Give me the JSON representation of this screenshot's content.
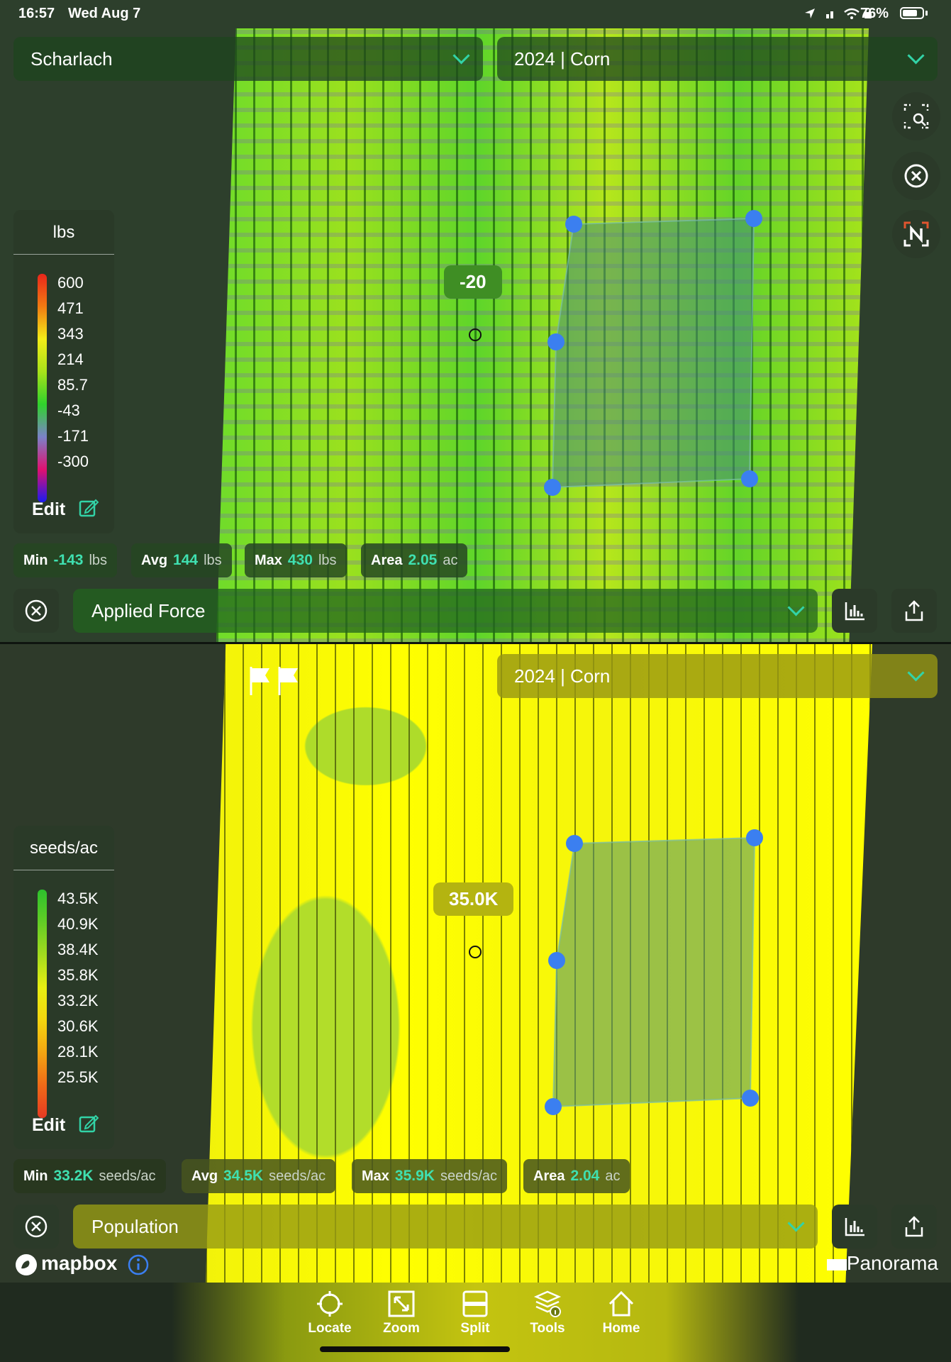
{
  "status_bar": {
    "time": "16:57",
    "date": "Wed Aug 7",
    "battery": "76%",
    "battery_level": 0.76
  },
  "field_selector": {
    "label": "Scharlach"
  },
  "top_map": {
    "season": "2024 | Corn",
    "marker_value": "-20",
    "legend": {
      "unit": "lbs",
      "ticks": [
        "600",
        "471",
        "343",
        "214",
        "85.7",
        "-43",
        "-171",
        "-300"
      ],
      "edit": "Edit",
      "colors": [
        "#e8261b",
        "#f07a12",
        "#f2ec18",
        "#a8e21a",
        "#2fd22c",
        "#7b82c8",
        "#e01070",
        "#1a1af0"
      ]
    },
    "stats": {
      "min": {
        "label": "Min",
        "value": "-143",
        "unit": "lbs"
      },
      "avg": {
        "label": "Avg",
        "value": "144",
        "unit": "lbs"
      },
      "max": {
        "label": "Max",
        "value": "430",
        "unit": "lbs"
      },
      "area": {
        "label": "Area",
        "value": "2.05",
        "unit": "ac"
      }
    },
    "layer": "Applied Force"
  },
  "bottom_map": {
    "season": "2024 | Corn",
    "marker_value": "35.0K",
    "legend": {
      "unit": "seeds/ac",
      "ticks": [
        "43.5K",
        "40.9K",
        "38.4K",
        "35.8K",
        "33.2K",
        "30.6K",
        "28.1K",
        "25.5K"
      ],
      "edit": "Edit",
      "colors": [
        "#2dc12d",
        "#62cd25",
        "#a3db1e",
        "#e8ef12",
        "#f5d60f",
        "#f2a512",
        "#ee6a18",
        "#e63a22"
      ]
    },
    "stats": {
      "min": {
        "label": "Min",
        "value": "33.2K",
        "unit": "seeds/ac"
      },
      "avg": {
        "label": "Avg",
        "value": "34.5K",
        "unit": "seeds/ac"
      },
      "max": {
        "label": "Max",
        "value": "35.9K",
        "unit": "seeds/ac"
      },
      "area": {
        "label": "Area",
        "value": "2.04",
        "unit": "ac"
      }
    },
    "layer": "Population"
  },
  "attribution": {
    "mapbox": "mapbox",
    "panorama": "Panorama"
  },
  "tabbar": [
    "Locate",
    "Zoom",
    "Split",
    "Tools",
    "Home"
  ]
}
